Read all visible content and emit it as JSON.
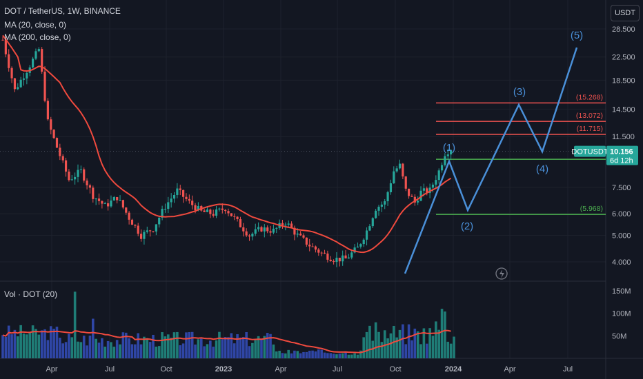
{
  "header": {
    "symbol_line": "DOT / TetherUS, 1W, BINANCE",
    "ma1": "MA (20, close, 0)",
    "ma2": "MA (200, close, 0)",
    "volume_label": "Vol · DOT (20)",
    "currency": "USDT"
  },
  "chart_data": {
    "type": "candlestick",
    "x_ticks": [
      "Apr",
      "Jul",
      "Oct",
      "2023",
      "Apr",
      "Jul",
      "Oct",
      "2024",
      "Apr",
      "Jul"
    ],
    "y_ticks": [
      "28.500",
      "22.500",
      "18.500",
      "14.500",
      "11.500",
      "7.500",
      "6.000",
      "5.000",
      "4.000"
    ],
    "y_scale": "log",
    "volume_ticks": [
      "150M",
      "100M",
      "50M"
    ],
    "last_price": "10.156",
    "symbol_badge": "DOTUSDT",
    "countdown": "6d 12h",
    "levels": [
      {
        "value": 15.268,
        "label": "(15.268)",
        "color": "#ef5350"
      },
      {
        "value": 13.072,
        "label": "(13.072)",
        "color": "#ef5350"
      },
      {
        "value": 11.715,
        "label": "(11.715)",
        "color": "#ef5350"
      },
      {
        "value": 9.5,
        "label": "",
        "color": "#4caf50"
      },
      {
        "value": 5.968,
        "label": "(5.968)",
        "color": "#4caf50"
      }
    ],
    "wave_labels": [
      "(1)",
      "(2)",
      "(3)",
      "(4)",
      "(5)"
    ],
    "colors": {
      "up": "#26a69a",
      "down": "#ef5350",
      "ma": "#f04a3e",
      "wave": "#4a90d9",
      "vol_up": "#1f7d77",
      "vol_down": "#2f46a6"
    }
  }
}
